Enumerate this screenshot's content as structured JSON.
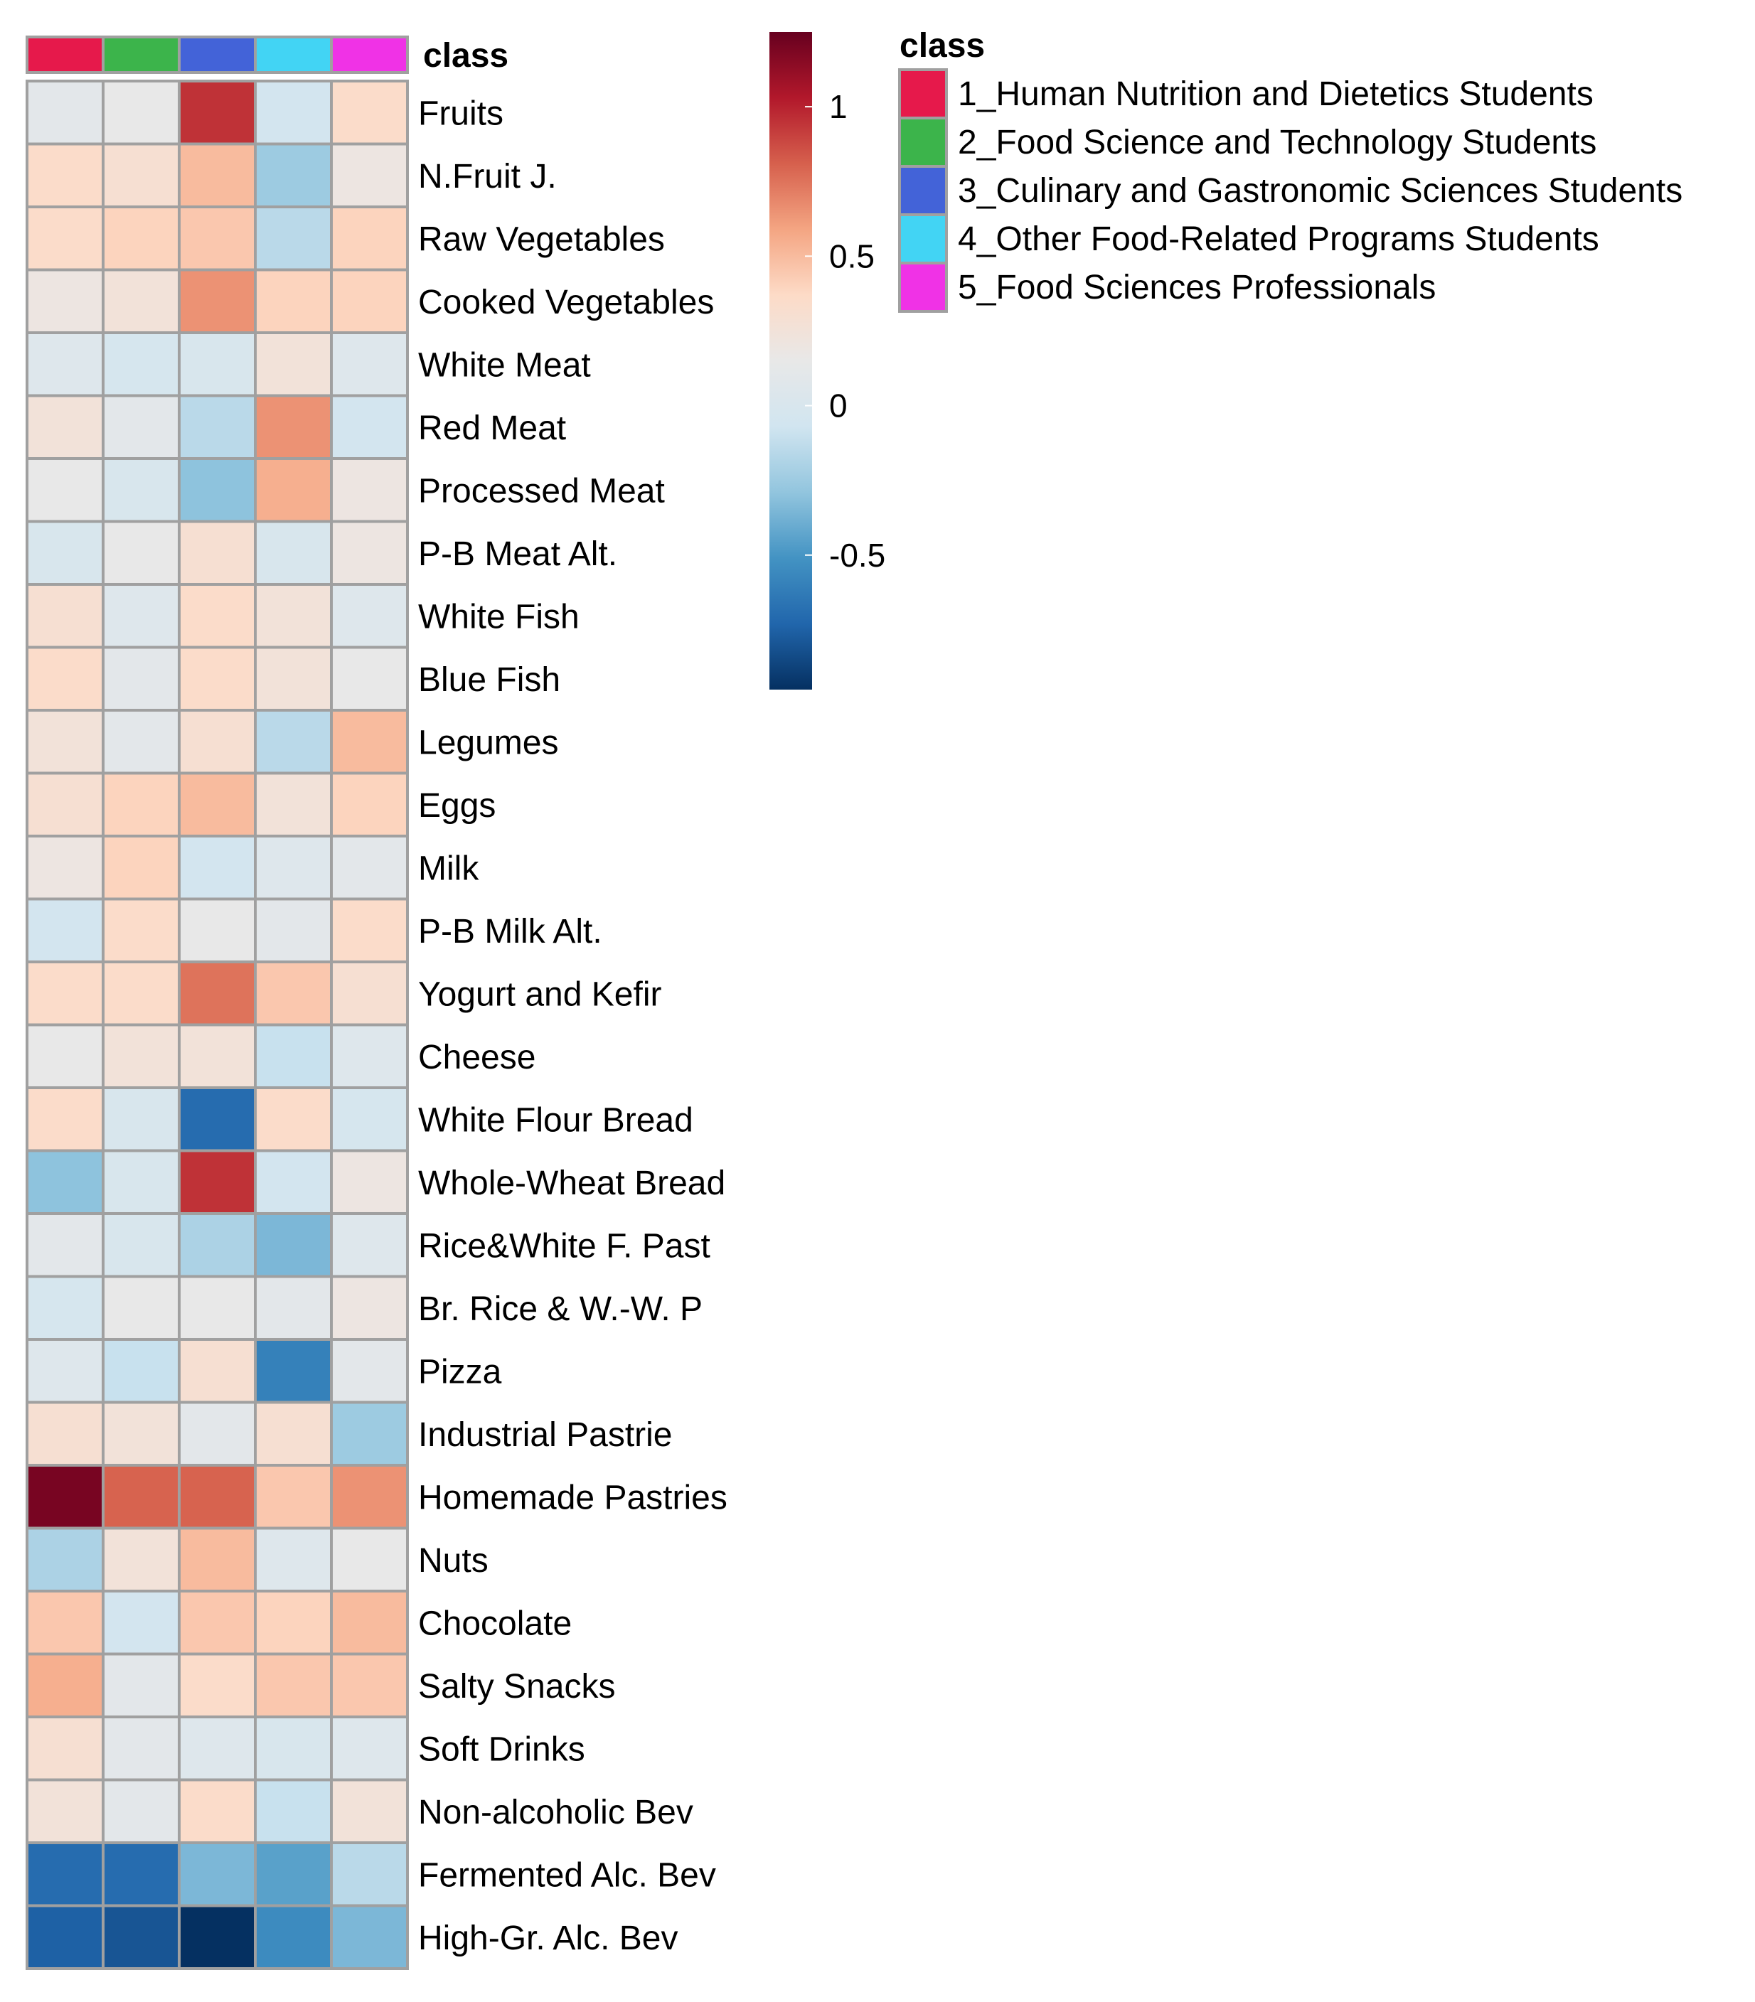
{
  "chart_data": {
    "type": "heatmap",
    "annotation_title": "class",
    "rows": [
      "Fruits",
      "N.Fruit J.",
      "Raw Vegetables",
      "Cooked Vegetables",
      "White Meat",
      "Red Meat",
      "Processed Meat",
      "P-B Meat Alt.",
      "White Fish",
      "Blue Fish",
      "Legumes",
      "Eggs",
      "Milk",
      "P-B Milk Alt.",
      "Yogurt and Kefir",
      "Cheese",
      "White Flour Bread",
      "Whole-Wheat Bread",
      "Rice&White F. Past",
      "Br. Rice & W.-W. P",
      "Pizza",
      "Industrial Pastrie",
      "Homemade Pastries",
      "Nuts",
      "Chocolate",
      "Salty Snacks",
      "Soft Drinks",
      "Non-alcoholic Bev",
      "Fermented Alc. Bev",
      "High-Gr. Alc. Bev"
    ],
    "columns": [
      "1",
      "2",
      "3",
      "4",
      "5"
    ],
    "values": [
      [
        0.1,
        0.15,
        0.95,
        -0.05,
        0.35
      ],
      [
        0.35,
        0.3,
        0.5,
        -0.25,
        0.2
      ],
      [
        0.35,
        0.4,
        0.45,
        -0.15,
        0.4
      ],
      [
        0.2,
        0.25,
        0.65,
        0.4,
        0.4
      ],
      [
        0.05,
        -0.02,
        0.0,
        0.25,
        0.05
      ],
      [
        0.25,
        0.1,
        -0.15,
        0.65,
        -0.05
      ],
      [
        0.15,
        0.0,
        -0.3,
        0.55,
        0.2
      ],
      [
        0.0,
        0.15,
        0.3,
        0.0,
        0.2
      ],
      [
        0.3,
        0.05,
        0.35,
        0.25,
        0.05
      ],
      [
        0.35,
        0.1,
        0.35,
        0.25,
        0.15
      ],
      [
        0.25,
        0.1,
        0.3,
        -0.15,
        0.5
      ],
      [
        0.3,
        0.4,
        0.5,
        0.25,
        0.4
      ],
      [
        0.2,
        0.4,
        -0.05,
        0.05,
        0.1
      ],
      [
        -0.05,
        0.35,
        0.15,
        0.1,
        0.35
      ],
      [
        0.35,
        0.35,
        0.75,
        0.45,
        0.3
      ],
      [
        0.15,
        0.25,
        0.25,
        -0.1,
        0.05
      ],
      [
        0.35,
        0.0,
        -0.7,
        0.35,
        -0.02
      ],
      [
        -0.3,
        0.0,
        0.95,
        -0.05,
        0.2
      ],
      [
        0.1,
        0.0,
        -0.2,
        -0.35,
        0.05
      ],
      [
        -0.02,
        0.15,
        0.15,
        0.1,
        0.2
      ],
      [
        0.05,
        -0.1,
        0.3,
        -0.6,
        0.1
      ],
      [
        0.3,
        0.25,
        0.1,
        0.3,
        -0.25
      ],
      [
        1.2,
        0.8,
        0.8,
        0.45,
        0.65
      ],
      [
        -0.2,
        0.25,
        0.5,
        0.05,
        0.15
      ],
      [
        0.45,
        -0.05,
        0.45,
        0.4,
        0.5
      ],
      [
        0.55,
        0.1,
        0.35,
        0.45,
        0.45
      ],
      [
        0.3,
        0.1,
        0.05,
        0.0,
        0.05
      ],
      [
        0.25,
        0.1,
        0.35,
        -0.1,
        0.25
      ],
      [
        -0.7,
        -0.7,
        -0.35,
        -0.45,
        -0.15
      ],
      [
        -0.75,
        -0.8,
        -1.0,
        -0.55,
        -0.35
      ]
    ],
    "column_annotations": [
      {
        "label": "1_Human Nutrition and Dietetics Students",
        "color": "#E6194B"
      },
      {
        "label": "2_Food Science and Technology Students",
        "color": "#3CB44B"
      },
      {
        "label": "3_Culinary and Gastronomic Sciences Students",
        "color": "#4363D8"
      },
      {
        "label": "4_Other Food-Related Programs Students",
        "color": "#42D4F4"
      },
      {
        "label": "5_Food Sciences Professionals",
        "color": "#F032E6"
      }
    ],
    "legend_title": "class",
    "colorbar": {
      "range": [
        -0.95,
        1.25
      ],
      "ticks": [
        -0.5,
        0,
        0.5,
        1
      ],
      "tick_labels": [
        "-0.5",
        "0",
        "0.5",
        "1"
      ],
      "palette": [
        "#053061",
        "#2166AC",
        "#4393C3",
        "#92C5DE",
        "#D1E5F0",
        "#E8E8E8",
        "#FDDBC7",
        "#F4A582",
        "#D6604D",
        "#B2182B",
        "#67001F"
      ]
    },
    "cell_border_color": "#A0A0A0"
  }
}
